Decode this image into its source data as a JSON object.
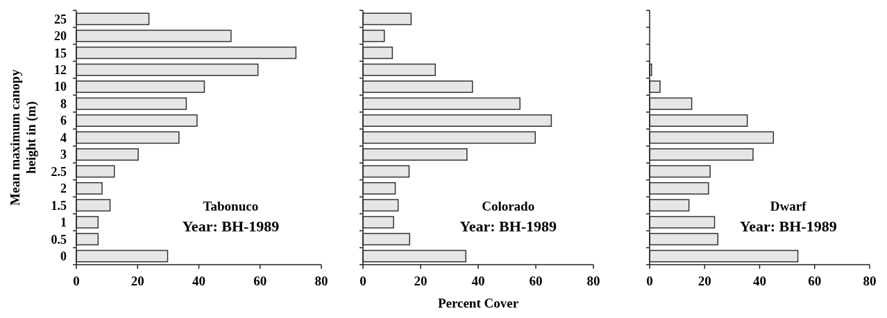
{
  "chart_data": [
    {
      "type": "bar",
      "orientation": "horizontal",
      "title": "Tabonuco",
      "subtitle": "Year: BH-1989",
      "ylabel": "Mean maximum canopy height in (m)",
      "categories": [
        "25",
        "20",
        "15",
        "12",
        "10",
        "8",
        "6",
        "4",
        "3",
        "2.5",
        "2",
        "1.5",
        "1",
        "0.5",
        "0"
      ],
      "color": "#e6e6e6",
      "values": [
        23.7,
        50.5,
        71.7,
        59.3,
        41.8,
        35.9,
        39.4,
        33.5,
        20.2,
        12.4,
        8.4,
        11,
        7.1,
        7.1,
        29.8
      ],
      "xlim": [
        0,
        80
      ],
      "xticks": [
        0,
        20,
        40,
        60,
        80
      ]
    },
    {
      "type": "bar",
      "orientation": "horizontal",
      "title": "Colorado",
      "subtitle": "Year: BH-1989",
      "xlabel": "Percent Cover",
      "categories": [
        null,
        null,
        null,
        null,
        null,
        null,
        null,
        null,
        null,
        null,
        null,
        null,
        null,
        null,
        null
      ],
      "color": "#e6e6e6",
      "tick_labels": "x",
      "values": [
        16.7,
        7.4,
        10.2,
        25.1,
        38.0,
        54.5,
        65.4,
        59.8,
        36.1,
        16.0,
        11.2,
        12.2,
        10.6,
        16.2,
        35.7
      ],
      "xlim": [
        0,
        80
      ],
      "xticks": [
        0,
        20,
        40,
        60,
        80
      ]
    },
    {
      "type": "bar",
      "orientation": "horizontal",
      "title": "Dwarf",
      "subtitle": "Year: BH-1989",
      "categories": [
        null,
        null,
        null,
        null,
        null,
        null,
        null,
        null,
        null,
        null,
        null,
        null,
        null,
        null,
        null
      ],
      "color": "#e6e6e6",
      "tick_labels": "x",
      "values": [
        0,
        0,
        0,
        0.7,
        3.8,
        15.3,
        35.5,
        45.0,
        37.6,
        22.0,
        21.4,
        14.3,
        23.6,
        24.8,
        53.9
      ],
      "xlim": [
        0,
        80
      ],
      "xticks": [
        0,
        20,
        40,
        60,
        80
      ]
    }
  ]
}
